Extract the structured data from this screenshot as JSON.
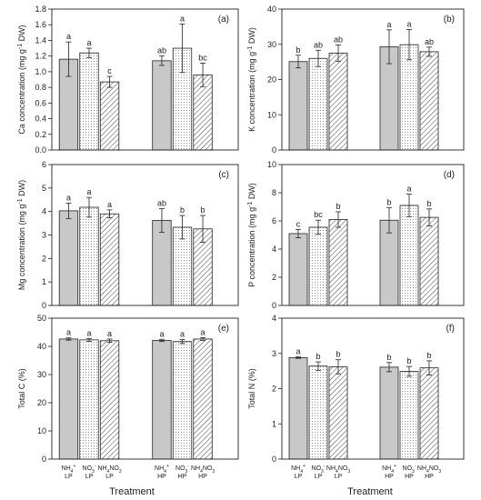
{
  "colors": {
    "ink": "#222222",
    "bar_dark": "#c8c8c8",
    "bar_dot": "#ffffff",
    "bar_hatch": "#ffffff"
  },
  "xlabel": "Treatment",
  "groups": [
    {
      "id": "LP",
      "ticks": [
        [
          "NH4+",
          "LP"
        ],
        [
          "NO3-",
          "LP"
        ],
        [
          "NH4NO3",
          "LP"
        ]
      ]
    },
    {
      "id": "HP",
      "ticks": [
        [
          "NH4+",
          "HP"
        ],
        [
          "NO3-",
          "HP"
        ],
        [
          "NH4NO3",
          "HP"
        ]
      ]
    }
  ],
  "series": [
    "NH4+",
    "NO3-",
    "NH4NO3"
  ],
  "chart_data": [
    {
      "type": "bar",
      "panel": "(a)",
      "ylabel": "Ca concentration (mg g-1 DW)",
      "ylim": [
        0,
        1.8
      ],
      "yticks": [
        "0.0",
        "0.2",
        "0.4",
        "0.6",
        "0.8",
        "1.0",
        "1.2",
        "1.4",
        "1.6",
        "1.8"
      ],
      "values": [
        [
          1.16,
          1.24,
          0.87
        ],
        [
          1.14,
          1.3,
          0.96
        ]
      ],
      "errors": [
        [
          0.22,
          0.06,
          0.07
        ],
        [
          0.06,
          0.31,
          0.15
        ]
      ],
      "letters": [
        [
          "a",
          "a",
          "c"
        ],
        [
          "ab",
          "a",
          "bc"
        ]
      ]
    },
    {
      "type": "bar",
      "panel": "(b)",
      "ylabel": "K concentration (mg g-1 DW)",
      "ylim": [
        0,
        40
      ],
      "yticks": [
        "0",
        "10",
        "20",
        "30",
        "40"
      ],
      "values": [
        [
          25.1,
          26.0,
          27.5
        ],
        [
          29.3,
          29.9,
          27.9
        ]
      ],
      "errors": [
        [
          1.8,
          2.3,
          2.3
        ],
        [
          4.8,
          4.3,
          1.3
        ]
      ],
      "letters": [
        [
          "b",
          "ab",
          "ab"
        ],
        [
          "a",
          "a",
          "ab"
        ]
      ]
    },
    {
      "type": "bar",
      "panel": "(c)",
      "ylabel": "Mg concentration (mg g-1 DW)",
      "ylim": [
        0,
        6
      ],
      "yticks": [
        "0",
        "1",
        "2",
        "3",
        "4",
        "5",
        "6"
      ],
      "values": [
        [
          4.03,
          4.18,
          3.9
        ],
        [
          3.62,
          3.33,
          3.26
        ]
      ],
      "errors": [
        [
          0.33,
          0.42,
          0.17
        ],
        [
          0.5,
          0.5,
          0.57
        ]
      ],
      "letters": [
        [
          "a",
          "a",
          "a"
        ],
        [
          "ab",
          "b",
          "b"
        ]
      ]
    },
    {
      "type": "bar",
      "panel": "(d)",
      "ylabel": "P concentration (mg g-1 DW)",
      "ylim": [
        0,
        10
      ],
      "yticks": [
        "0",
        "2",
        "4",
        "6",
        "8",
        "10"
      ],
      "values": [
        [
          5.1,
          5.55,
          6.1
        ],
        [
          6.05,
          7.1,
          6.25
        ]
      ],
      "errors": [
        [
          0.3,
          0.5,
          0.55
        ],
        [
          0.9,
          0.8,
          0.6
        ]
      ],
      "letters": [
        [
          "c",
          "bc",
          "b"
        ],
        [
          "b",
          "a",
          "b"
        ]
      ]
    },
    {
      "type": "bar",
      "panel": "(e)",
      "ylabel": "Total C (%)",
      "ylim": [
        0,
        50
      ],
      "yticks": [
        "0",
        "10",
        "20",
        "30",
        "40",
        "50"
      ],
      "values": [
        [
          42.6,
          42.3,
          42.0
        ],
        [
          42.1,
          41.7,
          42.6
        ]
      ],
      "errors": [
        [
          0.4,
          0.5,
          0.6
        ],
        [
          0.4,
          0.7,
          0.5
        ]
      ],
      "letters": [
        [
          "a",
          "a",
          "a"
        ],
        [
          "a",
          "a",
          "a"
        ]
      ]
    },
    {
      "type": "bar",
      "panel": "(f)",
      "ylabel": "Total N (%)",
      "ylim": [
        0,
        4
      ],
      "yticks": [
        "0",
        "1",
        "2",
        "3",
        "4"
      ],
      "values": [
        [
          2.88,
          2.64,
          2.62
        ],
        [
          2.61,
          2.49,
          2.59
        ]
      ],
      "errors": [
        [
          0.02,
          0.12,
          0.2
        ],
        [
          0.13,
          0.14,
          0.2
        ]
      ],
      "letters": [
        [
          "a",
          "b",
          "b"
        ],
        [
          "b",
          "b",
          "b"
        ]
      ]
    }
  ]
}
